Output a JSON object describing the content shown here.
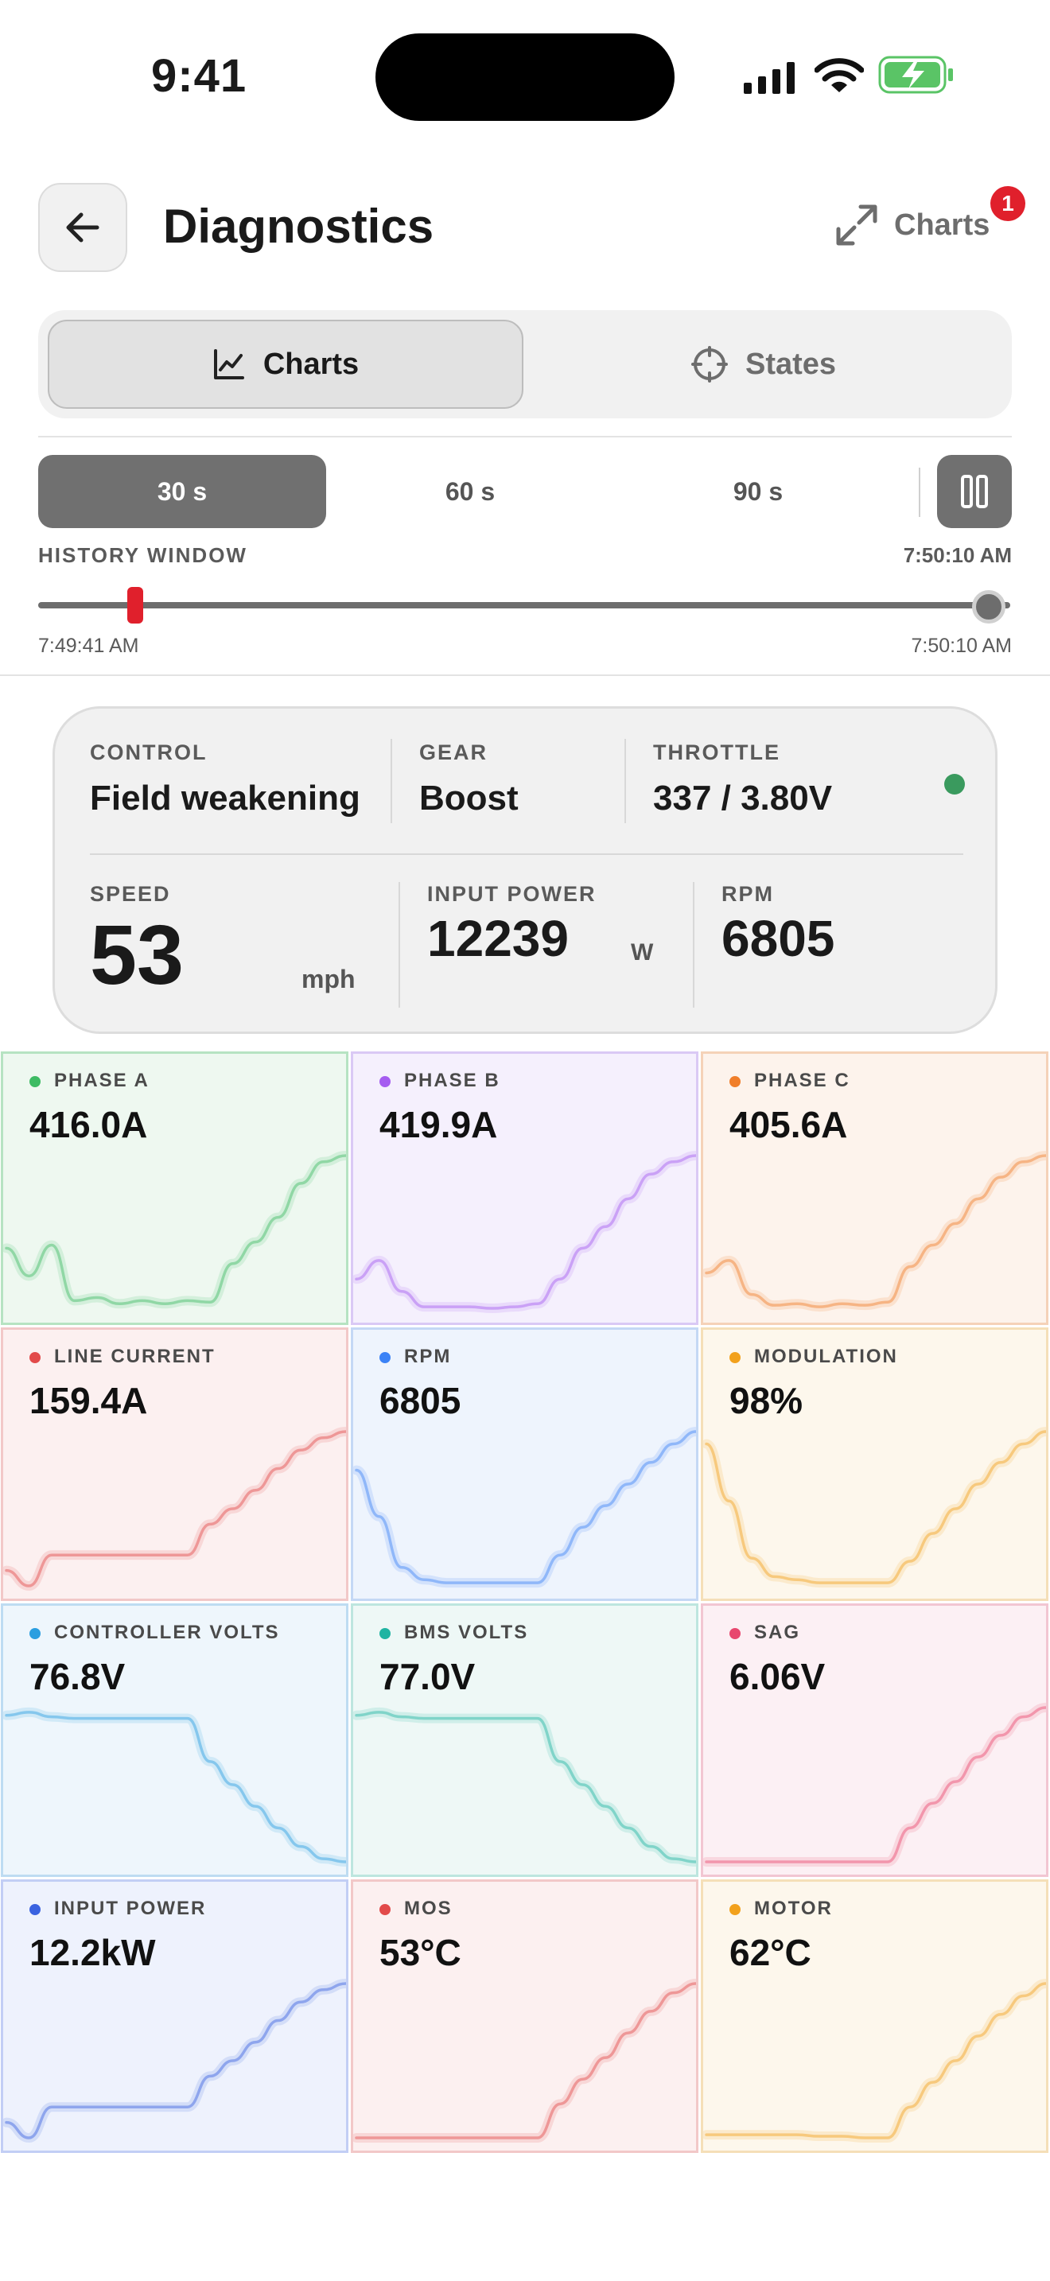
{
  "status_bar": {
    "time": "9:41"
  },
  "header": {
    "title": "Diagnostics",
    "charts_toggle_label": "Charts",
    "badge_count": "1"
  },
  "segmented": {
    "charts_label": "Charts",
    "states_label": "States"
  },
  "window_selector": {
    "options": [
      "30 s",
      "60 s",
      "90 s"
    ],
    "selected": "30 s"
  },
  "history": {
    "label": "HISTORY WINDOW",
    "end_time": "7:50:10 AM",
    "range_start": "7:49:41 AM",
    "range_end": "7:50:10 AM"
  },
  "summary": {
    "control": {
      "label": "CONTROL",
      "value": "Field weakening"
    },
    "gear": {
      "label": "GEAR",
      "value": "Boost"
    },
    "throttle": {
      "label": "THROTTLE",
      "value": "337 / 3.80V"
    },
    "speed": {
      "label": "SPEED",
      "value": "53",
      "unit": "mph"
    },
    "input_power": {
      "label": "INPUT POWER",
      "value": "12239",
      "unit": "W"
    },
    "rpm": {
      "label": "RPM",
      "value": "6805"
    },
    "status_color": "#3a9a5e"
  },
  "metrics": [
    {
      "label": "PHASE A",
      "value": "416.0A",
      "color": "#3dbb63",
      "bg": "#eef8f0",
      "border": "#b6e3c2",
      "trend": [
        0.4,
        0.22,
        0.42,
        0.06,
        0.08,
        0.04,
        0.06,
        0.04,
        0.06,
        0.05,
        0.3,
        0.44,
        0.6,
        0.82,
        0.96,
        1.0
      ]
    },
    {
      "label": "PHASE B",
      "value": "419.9A",
      "color": "#a55cf0",
      "bg": "#f5f0fd",
      "border": "#dac9f5",
      "trend": [
        0.2,
        0.32,
        0.12,
        0.02,
        0.02,
        0.02,
        0.01,
        0.02,
        0.04,
        0.2,
        0.4,
        0.54,
        0.72,
        0.88,
        0.96,
        1.0
      ]
    },
    {
      "label": "PHASE C",
      "value": "405.6A",
      "color": "#f07e2a",
      "bg": "#fdf3ec",
      "border": "#f5d2b8",
      "trend": [
        0.24,
        0.32,
        0.1,
        0.03,
        0.04,
        0.02,
        0.04,
        0.03,
        0.05,
        0.28,
        0.42,
        0.56,
        0.72,
        0.86,
        0.96,
        1.0
      ]
    },
    {
      "label": "LINE CURRENT",
      "value": "159.4A",
      "color": "#e24a4a",
      "bg": "#fcf0f0",
      "border": "#f2c8c8",
      "trend": [
        0.1,
        0.0,
        0.2,
        0.2,
        0.2,
        0.2,
        0.2,
        0.2,
        0.2,
        0.4,
        0.5,
        0.62,
        0.76,
        0.88,
        0.96,
        1.0
      ]
    },
    {
      "label": "RPM",
      "value": "6805",
      "color": "#3b82f6",
      "bg": "#eef4fd",
      "border": "#c4d8f5",
      "trend": [
        0.75,
        0.45,
        0.12,
        0.04,
        0.02,
        0.02,
        0.02,
        0.02,
        0.02,
        0.2,
        0.38,
        0.52,
        0.66,
        0.8,
        0.92,
        1.0
      ]
    },
    {
      "label": "MODULATION",
      "value": "98%",
      "color": "#f2a11c",
      "bg": "#fdf7ec",
      "border": "#f5dfb8",
      "trend": [
        0.92,
        0.55,
        0.18,
        0.06,
        0.04,
        0.02,
        0.02,
        0.02,
        0.02,
        0.16,
        0.34,
        0.5,
        0.66,
        0.8,
        0.92,
        1.0
      ]
    },
    {
      "label": "CONTROLLER VOLTS",
      "value": "76.8V",
      "color": "#2a9ee0",
      "bg": "#eef6fc",
      "border": "#bedcf2",
      "trend": [
        0.95,
        0.97,
        0.94,
        0.93,
        0.93,
        0.93,
        0.93,
        0.93,
        0.93,
        0.65,
        0.5,
        0.36,
        0.22,
        0.1,
        0.02,
        0.0
      ]
    },
    {
      "label": "BMS VOLTS",
      "value": "77.0V",
      "color": "#1fb4a2",
      "bg": "#eef8f6",
      "border": "#bde6df",
      "trend": [
        0.95,
        0.97,
        0.94,
        0.93,
        0.93,
        0.93,
        0.93,
        0.93,
        0.93,
        0.65,
        0.5,
        0.36,
        0.22,
        0.1,
        0.02,
        0.0
      ]
    },
    {
      "label": "SAG",
      "value": "6.06V",
      "color": "#e8476e",
      "bg": "#fcf0f4",
      "border": "#f2c6d2",
      "trend": [
        0.0,
        0.0,
        0.0,
        0.0,
        0.0,
        0.0,
        0.0,
        0.0,
        0.0,
        0.22,
        0.38,
        0.52,
        0.68,
        0.82,
        0.94,
        1.0
      ]
    },
    {
      "label": "INPUT POWER",
      "value": "12.2kW",
      "color": "#3a62e0",
      "bg": "#eef2fd",
      "border": "#c2cef5",
      "trend": [
        0.1,
        0.0,
        0.2,
        0.2,
        0.2,
        0.2,
        0.2,
        0.2,
        0.2,
        0.4,
        0.5,
        0.62,
        0.76,
        0.88,
        0.96,
        1.0
      ]
    },
    {
      "label": "MOS",
      "value": "53°C",
      "color": "#e24a4a",
      "bg": "#fcf0f0",
      "border": "#f2c8c8",
      "trend": [
        0.0,
        0.0,
        0.0,
        0.0,
        0.0,
        0.0,
        0.0,
        0.0,
        0.0,
        0.22,
        0.38,
        0.52,
        0.68,
        0.82,
        0.94,
        1.0
      ]
    },
    {
      "label": "MOTOR",
      "value": "62°C",
      "color": "#f2a11c",
      "bg": "#fdf7ec",
      "border": "#f5dfb8",
      "trend": [
        0.02,
        0.02,
        0.02,
        0.02,
        0.02,
        0.01,
        0.01,
        0.0,
        0.0,
        0.2,
        0.36,
        0.5,
        0.66,
        0.8,
        0.92,
        1.0
      ]
    }
  ]
}
